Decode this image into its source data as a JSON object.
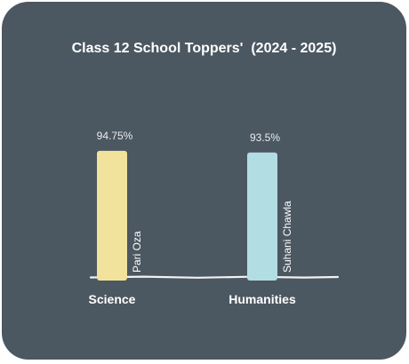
{
  "chart_data": {
    "type": "bar",
    "title": "Class 12 School Toppers'  (2024 - 2025)",
    "categories": [
      "Science",
      "Humanities"
    ],
    "values": [
      94.75,
      93.5
    ],
    "value_labels": [
      "94.75%",
      "93.5%"
    ],
    "bar_names": [
      "Pari Oza",
      "Suhani Chawla"
    ],
    "colors": [
      "#f1e39c",
      "#b2dde3"
    ],
    "grid": false,
    "legend": "none"
  }
}
